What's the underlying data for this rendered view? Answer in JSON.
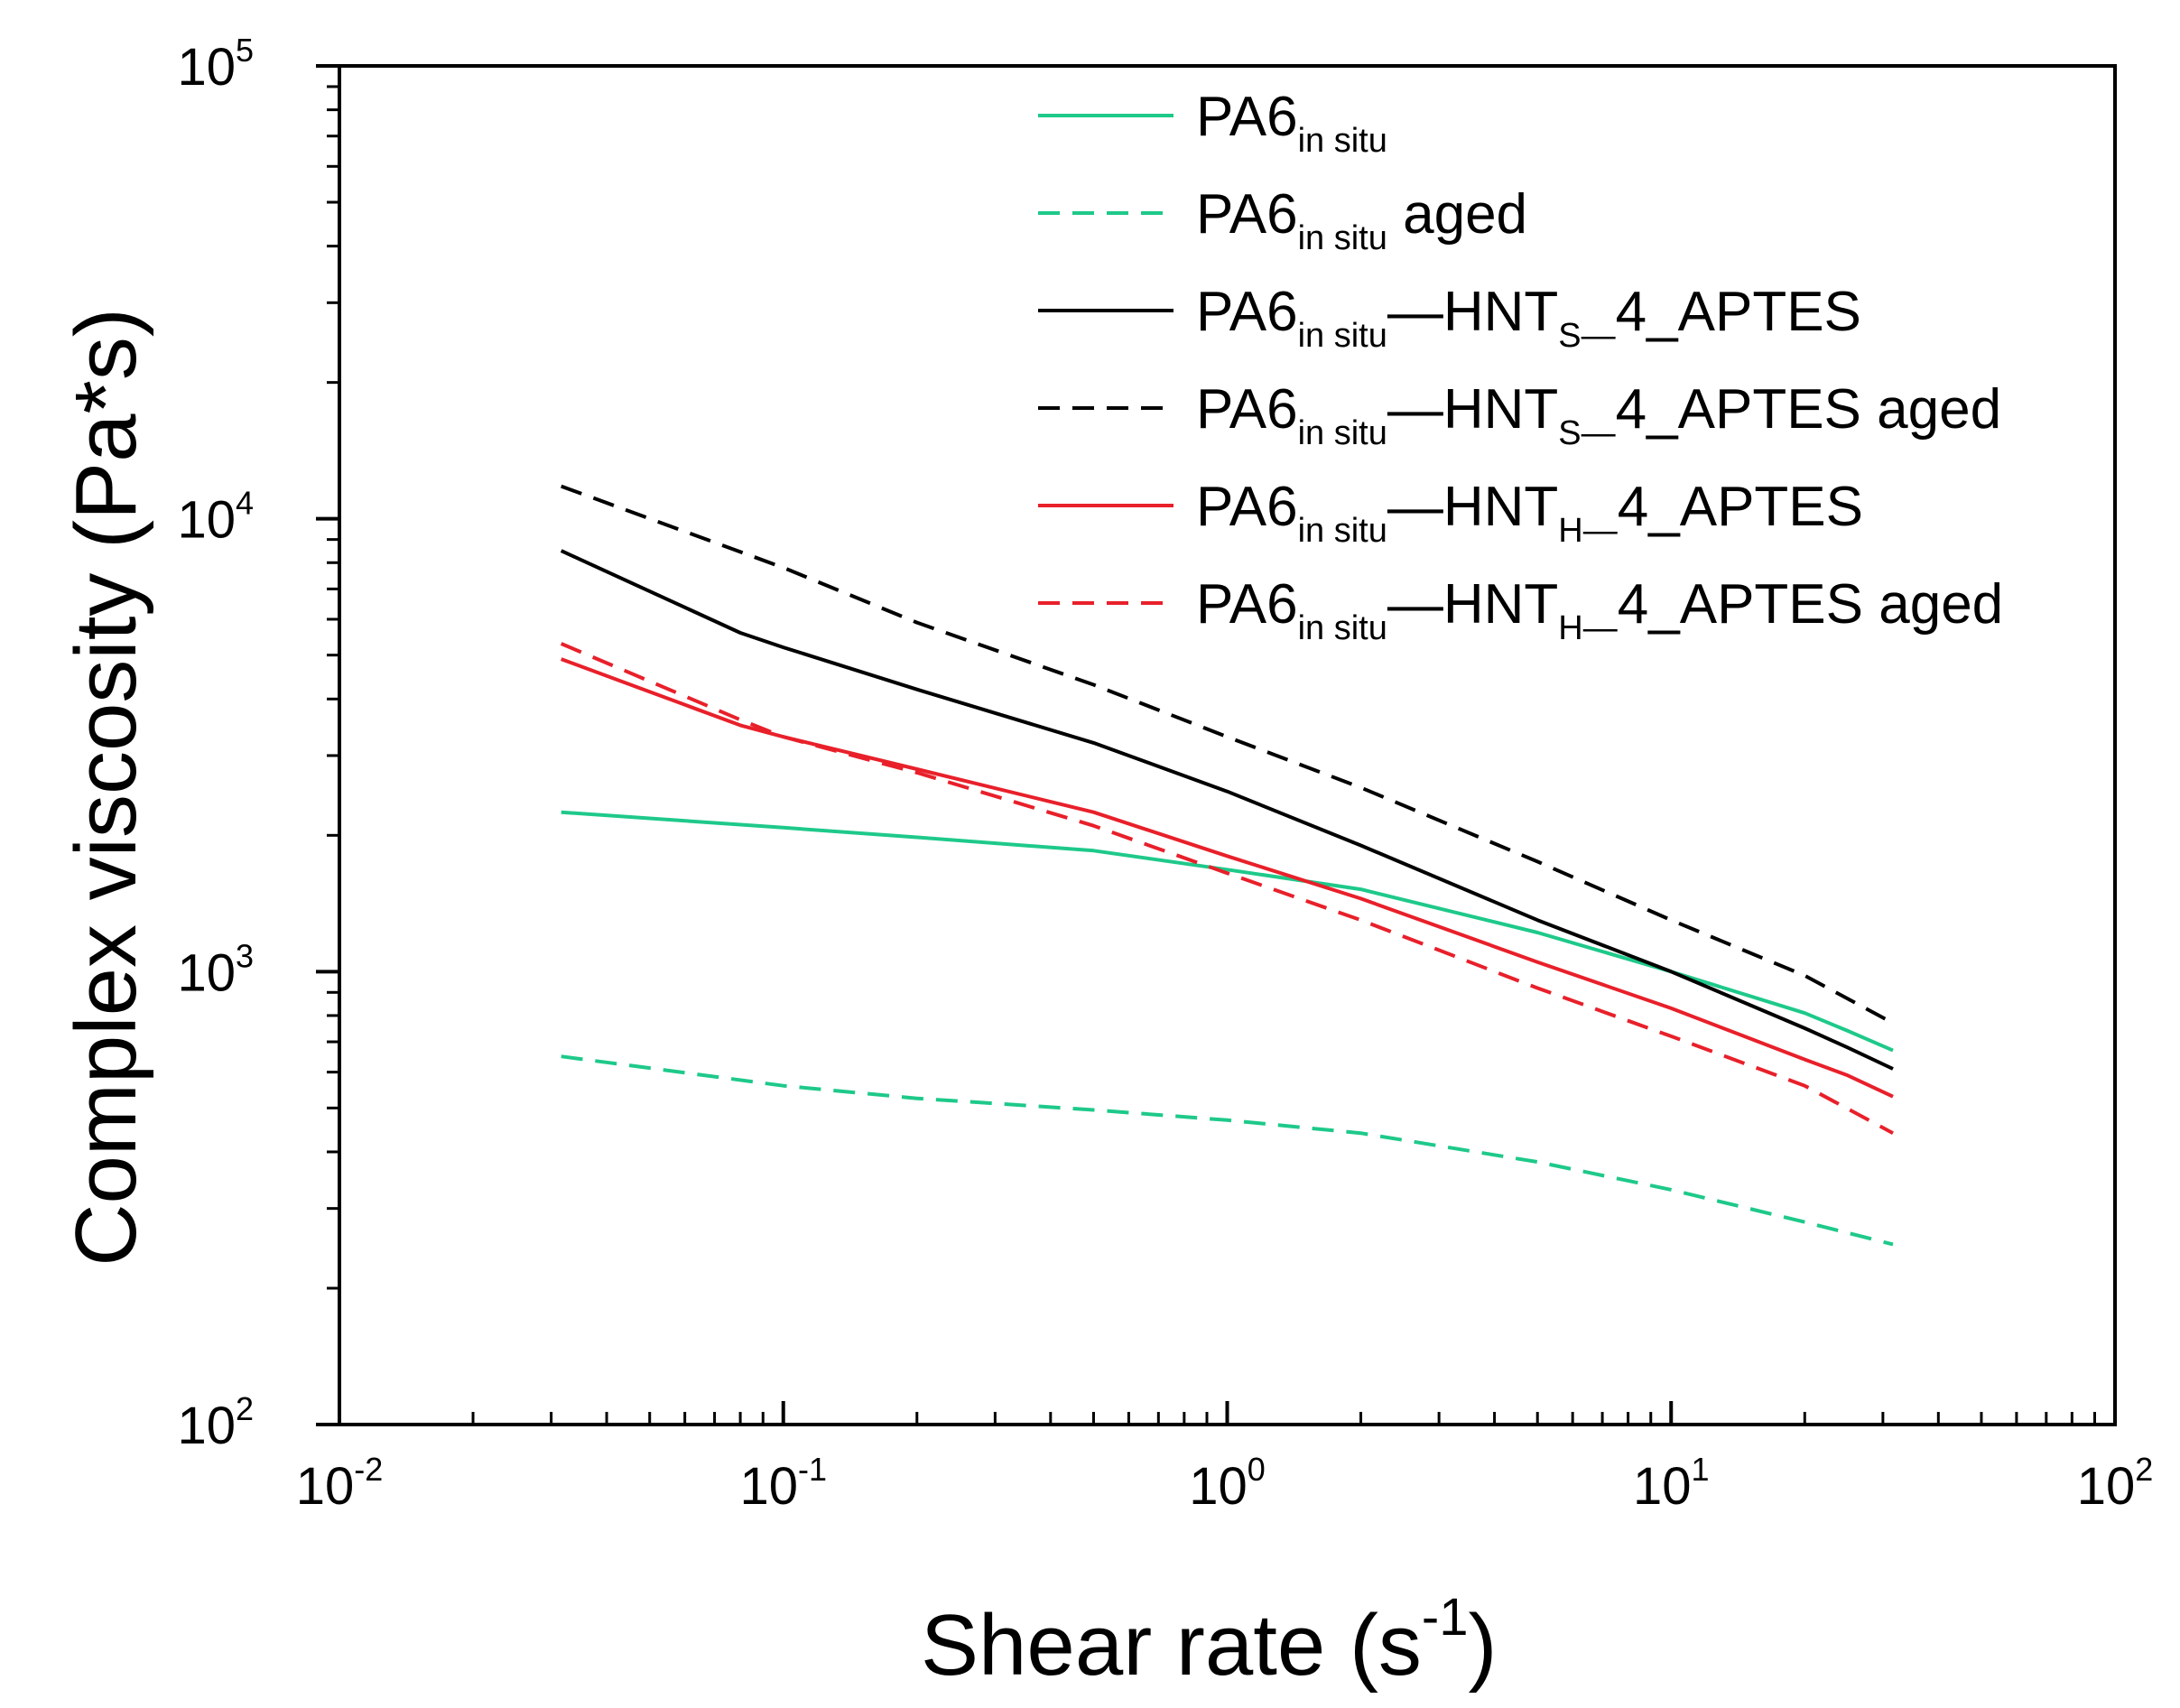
{
  "chart_data": {
    "type": "line",
    "xscale": "log",
    "yscale": "log",
    "xlim": [
      0.01,
      100
    ],
    "ylim": [
      100,
      100000
    ],
    "xlabel": "Shear rate (s",
    "xlabel_exp": "-1",
    "xlabel_close": ")",
    "ylabel": "Complex viscosity (Pa*s)",
    "x_ticks": [
      {
        "base": "10",
        "exp": "-2",
        "value": 0.01
      },
      {
        "base": "10",
        "exp": "-1",
        "value": 0.1
      },
      {
        "base": "10",
        "exp": "0",
        "value": 1
      },
      {
        "base": "10",
        "exp": "1",
        "value": 10
      },
      {
        "base": "10",
        "exp": "2",
        "value": 100
      }
    ],
    "y_ticks": [
      {
        "base": "10",
        "exp": "2",
        "value": 100
      },
      {
        "base": "10",
        "exp": "3",
        "value": 1000
      },
      {
        "base": "10",
        "exp": "4",
        "value": 10000
      },
      {
        "base": "10",
        "exp": "5",
        "value": 100000
      }
    ],
    "legend_position": "top-right",
    "series": [
      {
        "main": "PA6",
        "sub1": "in situ",
        "mid": "",
        "sub2": "",
        "tail": "",
        "color": "#1ec98a",
        "dashed": false,
        "x": [
          0.0316,
          0.1,
          0.2,
          0.5,
          1.0,
          2.0,
          5.0,
          10.0,
          20.0,
          25.0,
          31.6
        ],
        "y": [
          2250,
          2080,
          1980,
          1850,
          1680,
          1520,
          1220,
          1000,
          810,
          740,
          670
        ]
      },
      {
        "main": "PA6",
        "sub1": "in situ",
        "mid": "",
        "sub2": "",
        "tail": " aged",
        "color": "#1ec98a",
        "dashed": true,
        "x": [
          0.0316,
          0.1,
          0.2,
          0.5,
          1.0,
          2.0,
          5.0,
          10.0,
          20.0,
          31.6
        ],
        "y": [
          650,
          560,
          525,
          495,
          470,
          440,
          380,
          330,
          280,
          250
        ]
      },
      {
        "main": "PA6",
        "sub1": "in situ",
        "mid": "HNT",
        "sub2": "S",
        "tail": "4_APTES",
        "color": "#000000",
        "dashed": false,
        "x": [
          0.0316,
          0.08,
          0.1,
          0.2,
          0.5,
          1.0,
          2.0,
          5.0,
          10.0,
          20.0,
          25.0,
          31.6
        ],
        "y": [
          8500,
          5600,
          5200,
          4200,
          3200,
          2500,
          1900,
          1300,
          1000,
          750,
          680,
          610
        ]
      },
      {
        "main": "PA6",
        "sub1": "in situ",
        "mid": "HNT",
        "sub2": "S",
        "tail": "4_APTES aged",
        "color": "#000000",
        "dashed": true,
        "x": [
          0.0316,
          0.1,
          0.2,
          0.5,
          1.0,
          2.0,
          5.0,
          10.0,
          20.0,
          31.6
        ],
        "y": [
          11800,
          7800,
          5900,
          4300,
          3300,
          2550,
          1750,
          1300,
          980,
          770
        ]
      },
      {
        "main": "PA6",
        "sub1": "in situ",
        "mid": "HNT",
        "sub2": "H",
        "tail": "4_APTES",
        "color": "#e8202a",
        "dashed": false,
        "x": [
          0.0316,
          0.08,
          0.1,
          0.2,
          0.5,
          1.0,
          2.0,
          5.0,
          10.0,
          20.0,
          25.0,
          31.6
        ],
        "y": [
          4900,
          3500,
          3300,
          2800,
          2250,
          1800,
          1450,
          1050,
          830,
          640,
          590,
          530
        ]
      },
      {
        "main": "PA6",
        "sub1": "in situ",
        "mid": "HNT",
        "sub2": "H",
        "tail": "4_APTES aged",
        "color": "#e8202a",
        "dashed": true,
        "x": [
          0.0316,
          0.08,
          0.1,
          0.2,
          0.5,
          1.0,
          2.0,
          5.0,
          10.0,
          20.0,
          31.6
        ],
        "y": [
          5300,
          3600,
          3300,
          2750,
          2100,
          1650,
          1300,
          920,
          720,
          560,
          440
        ]
      }
    ]
  }
}
